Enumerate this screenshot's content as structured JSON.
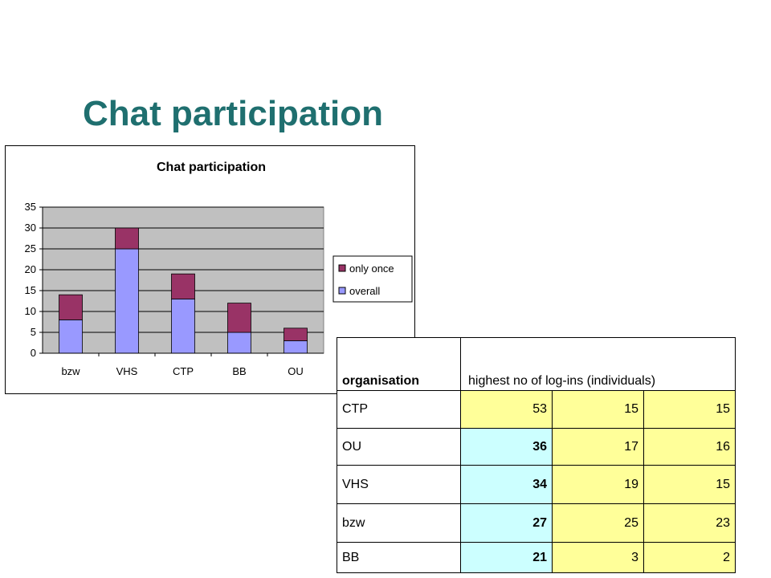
{
  "slide": {
    "title": "Chat participation"
  },
  "chart_data": {
    "type": "bar",
    "stacked": true,
    "title": "Chat participation",
    "categories": [
      "bzw",
      "VHS",
      "CTP",
      "BB",
      "OU"
    ],
    "series": [
      {
        "name": "overall",
        "color": "#9999ff",
        "values": [
          8,
          25,
          13,
          5,
          3
        ]
      },
      {
        "name": "only once",
        "color": "#993366",
        "values": [
          6,
          5,
          6,
          7,
          3
        ]
      }
    ],
    "ylim": [
      0,
      35
    ],
    "yticks": [
      "0",
      "5",
      "10",
      "15",
      "20",
      "25",
      "30",
      "35"
    ],
    "plot_background": "#c0c0c0",
    "grid": true,
    "legend_position": "right"
  },
  "table": {
    "headers": {
      "org": "organisation",
      "logins": "highest no of log-ins (individuals)"
    },
    "rows": [
      {
        "org": "CTP",
        "values": [
          "53",
          "15",
          "15"
        ]
      },
      {
        "org": "OU",
        "values": [
          "36",
          "17",
          "16"
        ]
      },
      {
        "org": "VHS",
        "values": [
          "34",
          "19",
          "15"
        ]
      },
      {
        "org": "bzw",
        "values": [
          "27",
          "25",
          "23"
        ]
      },
      {
        "org": "BB",
        "values": [
          "21",
          "3",
          "2"
        ]
      }
    ]
  }
}
